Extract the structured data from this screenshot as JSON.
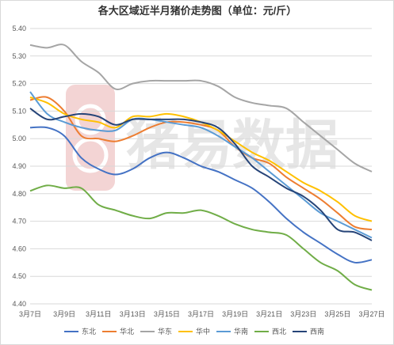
{
  "chart_data": {
    "type": "line",
    "title": "各大区域近半月猪价走势图（单位：元/斤）",
    "watermark": "猪易数据",
    "ylim": [
      4.4,
      5.4
    ],
    "yticks": [
      "4.40",
      "4.50",
      "4.60",
      "4.70",
      "4.80",
      "4.90",
      "5.00",
      "5.10",
      "5.20",
      "5.30",
      "5.40"
    ],
    "x": [
      "3月7日",
      "3月8日",
      "3月9日",
      "3月10日",
      "3月11日",
      "3月12日",
      "3月13日",
      "3月14日",
      "3月15日",
      "3月16日",
      "3月17日",
      "3月18日",
      "3月19日",
      "3月20日",
      "3月21日",
      "3月22日",
      "3月23日",
      "3月24日",
      "3月25日",
      "3月26日",
      "3月27日"
    ],
    "xtick_labels": [
      "3月7日",
      "3月9日",
      "3月11日",
      "3月13日",
      "3月15日",
      "3月17日",
      "3月19日",
      "3月21日",
      "3月23日",
      "3月25日",
      "3月27日"
    ],
    "grid": true,
    "legend_position": "bottom",
    "series": [
      {
        "name": "东北",
        "color": "#4472c4",
        "values": [
          5.04,
          5.04,
          5.01,
          4.93,
          4.89,
          4.87,
          4.89,
          4.93,
          4.95,
          4.93,
          4.9,
          4.88,
          4.85,
          4.82,
          4.77,
          4.71,
          4.66,
          4.62,
          4.58,
          4.55,
          4.56
        ]
      },
      {
        "name": "华北",
        "color": "#ed7d31",
        "values": [
          5.14,
          5.15,
          5.1,
          5.01,
          5.0,
          4.99,
          5.01,
          5.04,
          5.06,
          5.06,
          5.05,
          5.03,
          4.97,
          4.93,
          4.91,
          4.86,
          4.82,
          4.78,
          4.73,
          4.68,
          4.67
        ]
      },
      {
        "name": "华东",
        "color": "#a5a5a5",
        "values": [
          5.34,
          5.33,
          5.34,
          5.28,
          5.24,
          5.18,
          5.2,
          5.21,
          5.21,
          5.21,
          5.21,
          5.19,
          5.15,
          5.13,
          5.12,
          5.11,
          5.06,
          5.01,
          4.96,
          4.91,
          4.88
        ]
      },
      {
        "name": "华中",
        "color": "#ffc000",
        "values": [
          5.15,
          5.13,
          5.09,
          5.07,
          5.06,
          5.04,
          5.08,
          5.08,
          5.09,
          5.08,
          5.06,
          5.03,
          4.99,
          4.95,
          4.92,
          4.88,
          4.84,
          4.81,
          4.77,
          4.72,
          4.7
        ]
      },
      {
        "name": "华南",
        "color": "#5b9bd5",
        "values": [
          5.17,
          5.09,
          5.06,
          5.04,
          5.03,
          5.03,
          5.07,
          5.07,
          5.06,
          5.05,
          5.04,
          5.01,
          4.97,
          4.93,
          4.88,
          4.83,
          4.78,
          4.73,
          4.7,
          4.67,
          4.64
        ]
      },
      {
        "name": "西北",
        "color": "#70ad47",
        "values": [
          4.81,
          4.83,
          4.82,
          4.82,
          4.76,
          4.74,
          4.72,
          4.71,
          4.73,
          4.73,
          4.74,
          4.72,
          4.69,
          4.67,
          4.66,
          4.65,
          4.6,
          4.55,
          4.52,
          4.47,
          4.45
        ]
      },
      {
        "name": "西南",
        "color": "#264478",
        "values": [
          5.11,
          5.07,
          5.08,
          5.09,
          5.08,
          5.05,
          5.07,
          5.07,
          5.07,
          5.07,
          5.06,
          5.04,
          4.98,
          4.9,
          4.86,
          4.82,
          4.79,
          4.74,
          4.67,
          4.66,
          4.63
        ]
      }
    ]
  }
}
